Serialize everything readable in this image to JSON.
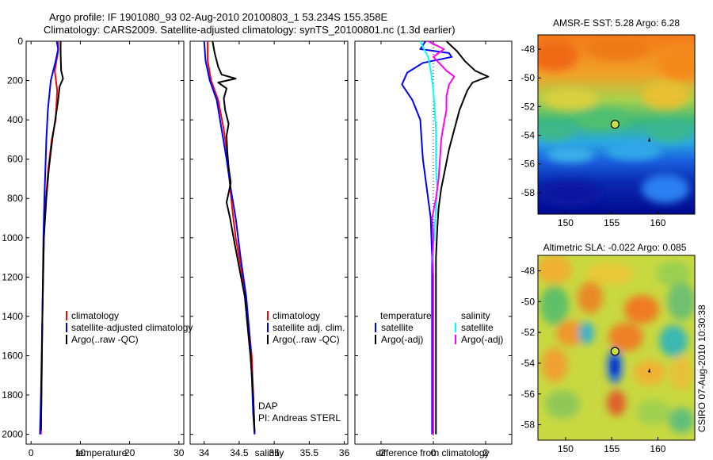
{
  "header": {
    "line1": "Argo profile: IF 1901080_93 02-Aug-2010 20100803_1 53.234S 155.358E",
    "line2": "Climatology: CARS2009. Satellite-adjusted climatology: synTS_20100801.nc (1.3d earlier)"
  },
  "side_label": "CSIRO 07-Aug-2010 10:30:38",
  "colors": {
    "climatology": "#ff0000",
    "satellite": "#0000ff",
    "argo": "#000000",
    "sal_satellite": "#00ffff",
    "sal_argo": "#ff00ff"
  },
  "chart_data": [
    {
      "id": "temperature",
      "type": "line",
      "xlabel": "temperature",
      "ylabel": "",
      "xlim": [
        -1,
        31
      ],
      "ylim": [
        2050,
        0
      ],
      "xticks": [
        0,
        10,
        20,
        30
      ],
      "yticks": [
        0,
        200,
        400,
        600,
        800,
        1000,
        1200,
        1400,
        1600,
        1800,
        2000
      ],
      "legend": [
        "climatology",
        "satellite-adjusted climatology",
        "Argo(..raw -QC)"
      ],
      "series": [
        {
          "name": "climatology",
          "color": "#ff0000",
          "points": [
            [
              5.5,
              0
            ],
            [
              5.5,
              50
            ],
            [
              4.8,
              150
            ],
            [
              5.3,
              250
            ],
            [
              5.0,
              400
            ],
            [
              4.2,
              500
            ],
            [
              3.5,
              650
            ],
            [
              3.0,
              800
            ],
            [
              2.6,
              1000
            ],
            [
              2.3,
              1400
            ],
            [
              2.1,
              1800
            ],
            [
              2.0,
              2000
            ]
          ]
        },
        {
          "name": "satellite-adjusted climatology",
          "color": "#0000ff",
          "points": [
            [
              5.2,
              0
            ],
            [
              5.5,
              40
            ],
            [
              5.0,
              100
            ],
            [
              4.0,
              200
            ],
            [
              3.4,
              350
            ],
            [
              3.1,
              500
            ],
            [
              2.9,
              650
            ],
            [
              2.7,
              800
            ],
            [
              2.5,
              1000
            ],
            [
              2.3,
              1400
            ],
            [
              2.0,
              1800
            ],
            [
              1.8,
              2000
            ]
          ]
        },
        {
          "name": "Argo(..raw -QC)",
          "color": "#000000",
          "points": [
            [
              6.0,
              0
            ],
            [
              6.0,
              60
            ],
            [
              6.1,
              150
            ],
            [
              6.5,
              190
            ],
            [
              5.8,
              230
            ],
            [
              5.5,
              300
            ],
            [
              4.9,
              400
            ],
            [
              4.3,
              500
            ],
            [
              3.6,
              650
            ],
            [
              3.1,
              800
            ],
            [
              2.6,
              1000
            ],
            [
              2.3,
              1400
            ],
            [
              2.1,
              1800
            ],
            [
              2.0,
              1980
            ]
          ]
        }
      ]
    },
    {
      "id": "salinity",
      "type": "line",
      "xlabel": "salinity",
      "ylabel": "",
      "xlim": [
        33.8,
        36.05
      ],
      "ylim": [
        2050,
        0
      ],
      "xticks": [
        34,
        34.5,
        35,
        35.5,
        36
      ],
      "yticks": [
        0,
        200,
        400,
        600,
        800,
        1000,
        1200,
        1400,
        1600,
        1800,
        2000
      ],
      "legend": [
        "climatology",
        "satellite adj. clim.",
        "Argo(..raw -QC)"
      ],
      "annotations": [
        "DAP",
        "PI: Andreas STERL"
      ],
      "series": [
        {
          "name": "climatology",
          "color": "#ff0000",
          "points": [
            [
              34.05,
              0
            ],
            [
              34.05,
              100
            ],
            [
              34.1,
              200
            ],
            [
              34.2,
              300
            ],
            [
              34.28,
              450
            ],
            [
              34.32,
              550
            ],
            [
              34.36,
              700
            ],
            [
              34.4,
              850
            ],
            [
              34.45,
              1000
            ],
            [
              34.55,
              1200
            ],
            [
              34.62,
              1400
            ],
            [
              34.68,
              1600
            ],
            [
              34.7,
              1800
            ],
            [
              34.72,
              2000
            ]
          ]
        },
        {
          "name": "satellite adj. clim.",
          "color": "#0000ff",
          "points": [
            [
              34.0,
              0
            ],
            [
              34.02,
              100
            ],
            [
              34.08,
              200
            ],
            [
              34.18,
              300
            ],
            [
              34.25,
              450
            ],
            [
              34.32,
              600
            ],
            [
              34.38,
              750
            ],
            [
              34.45,
              900
            ],
            [
              34.52,
              1100
            ],
            [
              34.6,
              1300
            ],
            [
              34.65,
              1500
            ],
            [
              34.68,
              1700
            ],
            [
              34.7,
              1900
            ],
            [
              34.72,
              2000
            ]
          ]
        },
        {
          "name": "Argo(..raw -QC)",
          "color": "#000000",
          "points": [
            [
              34.12,
              0
            ],
            [
              34.15,
              60
            ],
            [
              34.2,
              130
            ],
            [
              34.25,
              170
            ],
            [
              34.45,
              190
            ],
            [
              34.2,
              210
            ],
            [
              34.32,
              240
            ],
            [
              34.28,
              290
            ],
            [
              34.3,
              350
            ],
            [
              34.35,
              420
            ],
            [
              34.32,
              480
            ],
            [
              34.33,
              560
            ],
            [
              34.35,
              640
            ],
            [
              34.38,
              720
            ],
            [
              34.32,
              820
            ],
            [
              34.37,
              900
            ],
            [
              34.42,
              1000
            ],
            [
              34.5,
              1150
            ],
            [
              34.58,
              1300
            ],
            [
              34.62,
              1450
            ],
            [
              34.66,
              1600
            ],
            [
              34.7,
              1800
            ],
            [
              34.72,
              1990
            ]
          ]
        }
      ]
    },
    {
      "id": "difference",
      "type": "line",
      "xlabel": "difference from climatology",
      "ylabel": "",
      "xlim": [
        -3,
        3
      ],
      "ylim": [
        2050,
        0
      ],
      "xticks": [
        -2,
        0,
        2
      ],
      "yticks": [
        0,
        200,
        400,
        600,
        800,
        1000,
        1200,
        1400,
        1600,
        1800,
        2000
      ],
      "legend_temperature": {
        "title": "temperature",
        "items": [
          "satellite",
          "Argo(-adj)"
        ]
      },
      "legend_salinity": {
        "title": "salinity",
        "items": [
          "satellite",
          "Argo(-adj)"
        ]
      },
      "series": [
        {
          "name": "temperature satellite",
          "color": "#0000ff",
          "points": [
            [
              -0.3,
              0
            ],
            [
              -0.5,
              40
            ],
            [
              0.6,
              60
            ],
            [
              0.7,
              80
            ],
            [
              -0.4,
              110
            ],
            [
              -1.0,
              160
            ],
            [
              -1.2,
              220
            ],
            [
              -0.8,
              300
            ],
            [
              -0.5,
              400
            ],
            [
              -0.45,
              500
            ],
            [
              -0.4,
              600
            ],
            [
              -0.3,
              700
            ],
            [
              -0.2,
              800
            ],
            [
              -0.1,
              900
            ],
            [
              -0.05,
              1100
            ],
            [
              -0.05,
              1500
            ],
            [
              -0.05,
              2000
            ]
          ]
        },
        {
          "name": "temperature Argo(-adj)",
          "color": "#000000",
          "points": [
            [
              0.5,
              0
            ],
            [
              0.9,
              50
            ],
            [
              1.2,
              100
            ],
            [
              1.6,
              150
            ],
            [
              2.1,
              180
            ],
            [
              1.5,
              210
            ],
            [
              1.3,
              250
            ],
            [
              1.0,
              350
            ],
            [
              0.8,
              450
            ],
            [
              0.6,
              550
            ],
            [
              0.45,
              650
            ],
            [
              0.3,
              750
            ],
            [
              0.2,
              850
            ],
            [
              0.15,
              950
            ],
            [
              0.1,
              1100
            ],
            [
              0.1,
              1500
            ],
            [
              0.1,
              2000
            ]
          ]
        },
        {
          "name": "salinity satellite",
          "color": "#00ffff",
          "points": [
            [
              -0.5,
              0
            ],
            [
              -0.4,
              30
            ],
            [
              -0.2,
              80
            ],
            [
              -0.1,
              150
            ],
            [
              0.0,
              250
            ],
            [
              0.05,
              350
            ],
            [
              0.1,
              450
            ],
            [
              0.1,
              550
            ],
            [
              0.1,
              650
            ],
            [
              0.15,
              750
            ],
            [
              0.1,
              850
            ],
            [
              0.05,
              950
            ],
            [
              0.0,
              1050
            ],
            [
              0.0,
              1500
            ],
            [
              0.0,
              2000
            ]
          ]
        },
        {
          "name": "salinity Argo(-adj)",
          "color": "#ff00ff",
          "points": [
            [
              -0.2,
              0
            ],
            [
              0.4,
              40
            ],
            [
              0.0,
              80
            ],
            [
              0.5,
              150
            ],
            [
              0.8,
              180
            ],
            [
              0.6,
              220
            ],
            [
              0.5,
              280
            ],
            [
              0.5,
              350
            ],
            [
              0.4,
              420
            ],
            [
              0.3,
              500
            ],
            [
              0.25,
              600
            ],
            [
              0.2,
              700
            ],
            [
              0.1,
              800
            ],
            [
              -0.05,
              900
            ],
            [
              0.0,
              1000
            ],
            [
              -0.05,
              1100
            ],
            [
              0.0,
              1200
            ],
            [
              0.0,
              2000
            ]
          ]
        }
      ]
    },
    {
      "id": "amsre-sst",
      "type": "heatmap",
      "title": "AMSR-E SST: 5.28 Argo: 6.28",
      "xlim": [
        147,
        164
      ],
      "ylim": [
        -59.5,
        -47
      ],
      "xticks": [
        150,
        155,
        160
      ],
      "yticks": [
        -48,
        -50,
        -52,
        -54,
        -56,
        -58
      ],
      "marker": {
        "lon": 155.358,
        "lat": -53.234
      }
    },
    {
      "id": "altimetric-sla",
      "type": "heatmap",
      "title": "Altimetric SLA: -0.022 Argo: 0.085",
      "xlim": [
        147,
        164
      ],
      "ylim": [
        -59,
        -47
      ],
      "xticks": [
        150,
        155,
        160
      ],
      "yticks": [
        -48,
        -50,
        -52,
        -54,
        -56,
        -58
      ],
      "marker": {
        "lon": 155.358,
        "lat": -53.234
      }
    }
  ]
}
